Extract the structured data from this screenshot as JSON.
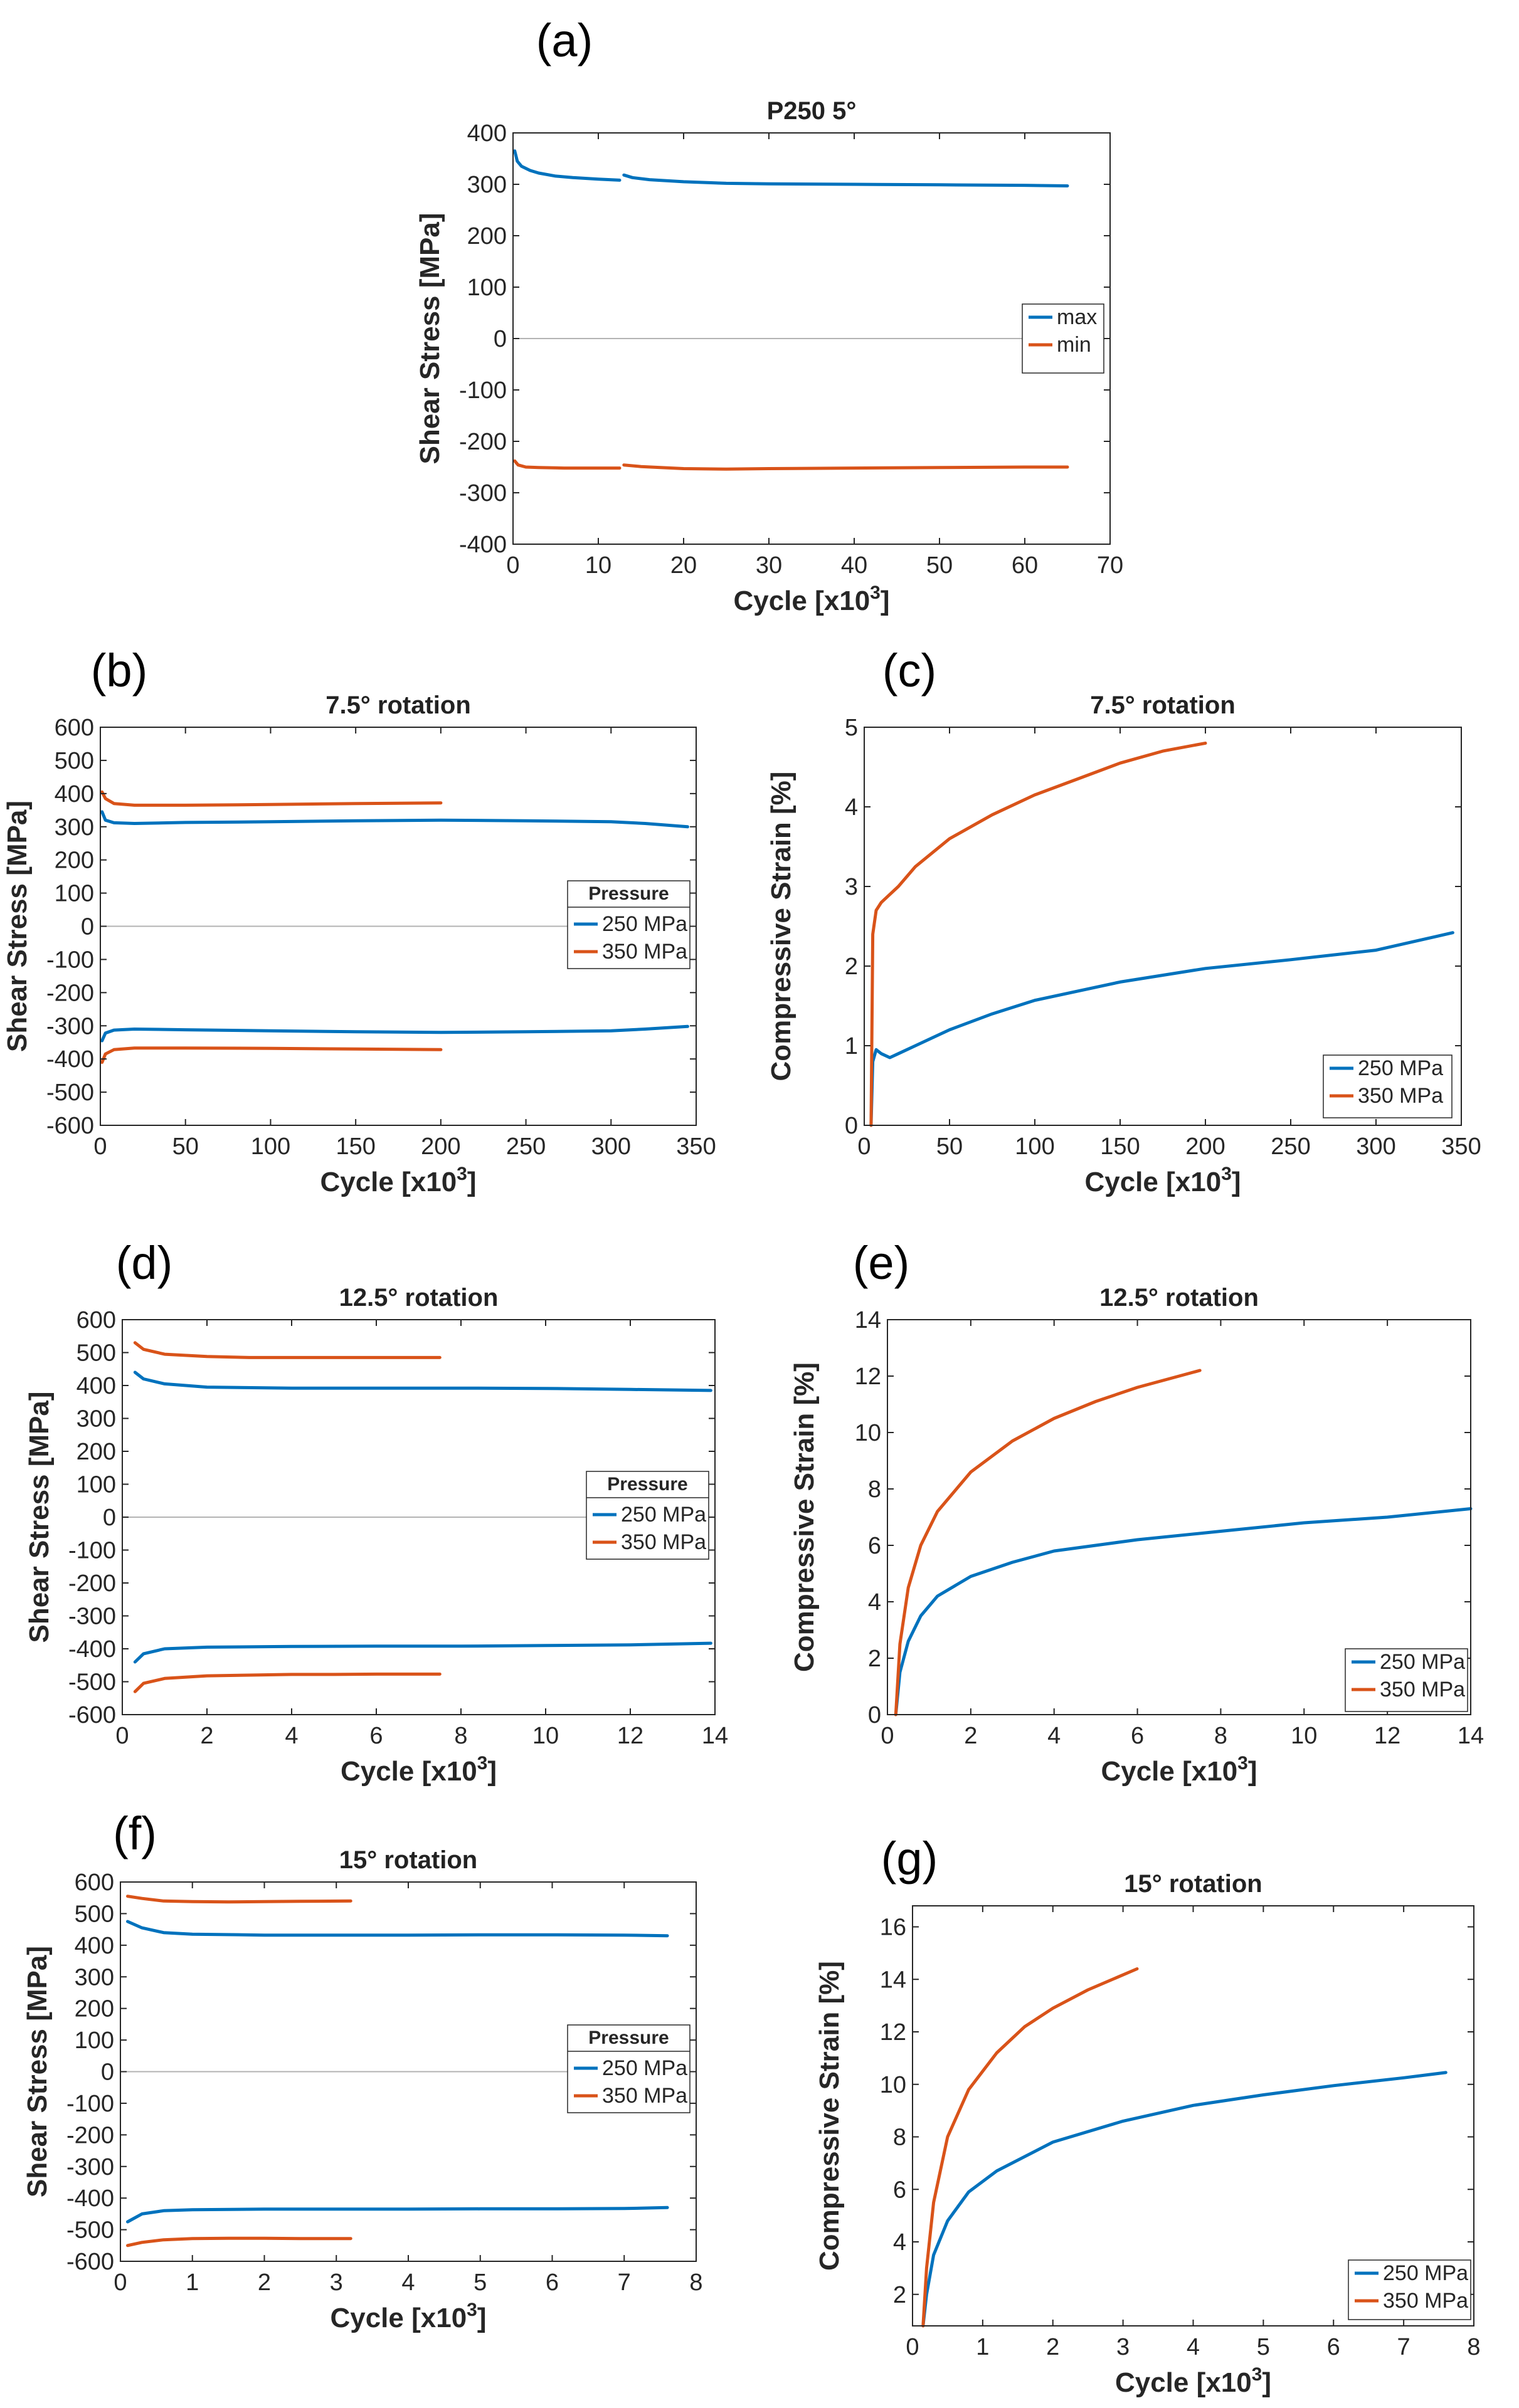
{
  "colors": {
    "blue": "#0072BD",
    "orange": "#D95319",
    "axis": "#262626",
    "zero": "#b3b3b3"
  },
  "chart_data": [
    {
      "id": "a",
      "panel": "(a)",
      "type": "line",
      "title": "P250 5°",
      "xlabel": "Cycle [x10",
      "xsup": "3",
      "xclose": "]",
      "ylabel": "Shear Stress [MPa]",
      "xlim": [
        0,
        70
      ],
      "ylim": [
        -400,
        400
      ],
      "xticks": [
        0,
        10,
        20,
        30,
        40,
        50,
        60,
        70
      ],
      "yticks": [
        -400,
        -300,
        -200,
        -100,
        0,
        100,
        200,
        300,
        400
      ],
      "zero_line": true,
      "legend": {
        "title": "",
        "entries": [
          "max",
          "min"
        ]
      },
      "series": [
        {
          "name": "max",
          "color": "blue",
          "segments": [
            {
              "x": [
                0.2,
                0.5,
                1,
                2,
                3,
                5,
                7,
                10,
                12.5
              ],
              "y": [
                365,
                345,
                335,
                327,
                322,
                316,
                313,
                310,
                308
              ]
            },
            {
              "x": [
                13,
                14,
                16,
                20,
                25,
                30,
                40,
                50,
                60,
                65
              ],
              "y": [
                318,
                313,
                309,
                305,
                302,
                301,
                300,
                299,
                298,
                297
              ]
            }
          ]
        },
        {
          "name": "min",
          "color": "orange",
          "segments": [
            {
              "x": [
                0.2,
                0.6,
                1.5,
                3,
                6,
                10,
                12.5
              ],
              "y": [
                -238,
                -246,
                -250,
                -251,
                -252,
                -252,
                -252
              ]
            },
            {
              "x": [
                13,
                15,
                20,
                25,
                30,
                40,
                50,
                60,
                65
              ],
              "y": [
                -246,
                -249,
                -253,
                -254,
                -253,
                -252,
                -251,
                -250,
                -250
              ]
            }
          ]
        }
      ]
    },
    {
      "id": "b",
      "panel": "(b)",
      "type": "line",
      "title": "7.5° rotation",
      "xlabel": "Cycle [x10",
      "xsup": "3",
      "xclose": "]",
      "ylabel": "Shear Stress [MPa]",
      "xlim": [
        0,
        350
      ],
      "ylim": [
        -600,
        600
      ],
      "xticks": [
        0,
        50,
        100,
        150,
        200,
        250,
        300,
        350
      ],
      "yticks": [
        -600,
        -500,
        -400,
        -300,
        -200,
        -100,
        0,
        100,
        200,
        300,
        400,
        500,
        600
      ],
      "zero_line": true,
      "legend": {
        "title": "Pressure",
        "entries": [
          "250 MPa",
          "350 MPa"
        ]
      },
      "series": [
        {
          "name": "250 MPa",
          "color": "blue",
          "segments": [
            {
              "x": [
                1,
                3,
                8,
                20,
                50,
                100,
                150,
                200,
                250,
                300,
                320,
                345
              ],
              "y": [
                345,
                320,
                312,
                310,
                313,
                315,
                318,
                320,
                318,
                315,
                310,
                300
              ]
            },
            {
              "x": [
                1,
                3,
                8,
                20,
                50,
                100,
                150,
                200,
                250,
                300,
                320,
                345
              ],
              "y": [
                -345,
                -322,
                -313,
                -310,
                -312,
                -315,
                -318,
                -320,
                -318,
                -315,
                -310,
                -302
              ]
            }
          ]
        },
        {
          "name": "350 MPa",
          "color": "orange",
          "segments": [
            {
              "x": [
                1,
                3,
                8,
                20,
                50,
                100,
                150,
                200
              ],
              "y": [
                405,
                385,
                370,
                365,
                365,
                367,
                370,
                372
              ]
            },
            {
              "x": [
                1,
                3,
                8,
                20,
                50,
                100,
                150,
                200
              ],
              "y": [
                -410,
                -385,
                -372,
                -367,
                -367,
                -368,
                -370,
                -372
              ]
            }
          ]
        }
      ]
    },
    {
      "id": "c",
      "panel": "(c)",
      "type": "line",
      "title": "7.5° rotation",
      "xlabel": "Cycle [x10",
      "xsup": "3",
      "xclose": "]",
      "ylabel": "Compressive Strain [%]",
      "xlim": [
        0,
        350
      ],
      "ylim": [
        0,
        5
      ],
      "xticks": [
        0,
        50,
        100,
        150,
        200,
        250,
        300,
        350
      ],
      "yticks": [
        0,
        1,
        2,
        3,
        4,
        5
      ],
      "zero_line": false,
      "legend": {
        "title": "",
        "entries": [
          "250 MPa",
          "350 MPa"
        ]
      },
      "series": [
        {
          "name": "250 MPa",
          "color": "blue",
          "segments": [
            {
              "x": [
                4,
                5,
                7,
                10,
                15,
                20,
                30,
                50,
                75,
                100,
                150,
                200,
                250,
                300,
                345
              ],
              "y": [
                0,
                0.8,
                0.95,
                0.9,
                0.85,
                0.9,
                1.0,
                1.2,
                1.4,
                1.57,
                1.8,
                1.97,
                2.08,
                2.2,
                2.42
              ]
            }
          ]
        },
        {
          "name": "350 MPa",
          "color": "orange",
          "segments": [
            {
              "x": [
                4,
                5,
                7,
                10,
                15,
                20,
                30,
                50,
                75,
                100,
                125,
                150,
                175,
                200
              ],
              "y": [
                0,
                2.4,
                2.7,
                2.8,
                2.9,
                3.0,
                3.25,
                3.6,
                3.9,
                4.15,
                4.35,
                4.55,
                4.7,
                4.8
              ]
            }
          ]
        }
      ]
    },
    {
      "id": "d",
      "panel": "(d)",
      "type": "line",
      "title": "12.5° rotation",
      "xlabel": "Cycle [x10",
      "xsup": "3",
      "xclose": "]",
      "ylabel": "Shear Stress [MPa]",
      "xlim": [
        0,
        14
      ],
      "ylim": [
        -600,
        600
      ],
      "xticks": [
        0,
        2,
        4,
        6,
        8,
        10,
        12,
        14
      ],
      "yticks": [
        -600,
        -500,
        -400,
        -300,
        -200,
        -100,
        0,
        100,
        200,
        300,
        400,
        500,
        600
      ],
      "zero_line": true,
      "legend": {
        "title": "Pressure",
        "entries": [
          "250 MPa",
          "350 MPa"
        ]
      },
      "series": [
        {
          "name": "250 MPa",
          "color": "blue",
          "segments": [
            {
              "x": [
                0.3,
                0.5,
                1,
                2,
                4,
                6,
                8,
                10,
                12,
                13.9
              ],
              "y": [
                440,
                420,
                405,
                395,
                392,
                392,
                392,
                391,
                388,
                385
              ]
            },
            {
              "x": [
                0.3,
                0.5,
                1,
                2,
                4,
                6,
                8,
                10,
                12,
                13.9
              ],
              "y": [
                -440,
                -415,
                -400,
                -395,
                -393,
                -392,
                -392,
                -390,
                -388,
                -383
              ]
            }
          ]
        },
        {
          "name": "350 MPa",
          "color": "orange",
          "segments": [
            {
              "x": [
                0.3,
                0.5,
                1,
                2,
                3,
                4,
                5,
                6,
                7.5
              ],
              "y": [
                530,
                510,
                495,
                488,
                485,
                485,
                485,
                485,
                485
              ]
            },
            {
              "x": [
                0.3,
                0.5,
                1,
                2,
                3,
                4,
                5,
                6,
                7.5
              ],
              "y": [
                -530,
                -505,
                -490,
                -482,
                -480,
                -478,
                -478,
                -477,
                -477
              ]
            }
          ]
        }
      ]
    },
    {
      "id": "e",
      "panel": "(e)",
      "type": "line",
      "title": "12.5° rotation",
      "xlabel": "Cycle [x10",
      "xsup": "3",
      "xclose": "]",
      "ylabel": "Compressive Strain [%]",
      "xlim": [
        0,
        14
      ],
      "ylim": [
        0,
        14
      ],
      "xticks": [
        0,
        2,
        4,
        6,
        8,
        10,
        12,
        14
      ],
      "yticks": [
        0,
        2,
        4,
        6,
        8,
        10,
        12,
        14
      ],
      "zero_line": false,
      "legend": {
        "title": "",
        "entries": [
          "250 MPa",
          "350 MPa"
        ]
      },
      "series": [
        {
          "name": "250 MPa",
          "color": "blue",
          "segments": [
            {
              "x": [
                0.2,
                0.3,
                0.5,
                0.8,
                1.2,
                2,
                3,
                4,
                6,
                8,
                10,
                12,
                14
              ],
              "y": [
                0,
                1.5,
                2.6,
                3.5,
                4.2,
                4.9,
                5.4,
                5.8,
                6.2,
                6.5,
                6.8,
                7.0,
                7.3
              ]
            }
          ]
        },
        {
          "name": "350 MPa",
          "color": "orange",
          "segments": [
            {
              "x": [
                0.2,
                0.3,
                0.5,
                0.8,
                1.2,
                2,
                3,
                4,
                5,
                6,
                7,
                7.5
              ],
              "y": [
                0,
                2.5,
                4.5,
                6.0,
                7.2,
                8.6,
                9.7,
                10.5,
                11.1,
                11.6,
                12.0,
                12.2
              ]
            }
          ]
        }
      ]
    },
    {
      "id": "f",
      "panel": "(f)",
      "type": "line",
      "title": "15° rotation",
      "xlabel": "Cycle [x10",
      "xsup": "3",
      "xclose": "]",
      "ylabel": "Shear Stress [MPa]",
      "xlim": [
        0,
        8
      ],
      "ylim": [
        -600,
        600
      ],
      "xticks": [
        0,
        1,
        2,
        3,
        4,
        5,
        6,
        7,
        8
      ],
      "yticks": [
        -600,
        -500,
        -400,
        -300,
        -200,
        -100,
        0,
        100,
        200,
        300,
        400,
        500,
        600
      ],
      "zero_line": true,
      "legend": {
        "title": "Pressure",
        "entries": [
          "250 MPa",
          "350 MPa"
        ]
      },
      "series": [
        {
          "name": "250 MPa",
          "color": "blue",
          "segments": [
            {
              "x": [
                0.1,
                0.3,
                0.6,
                1,
                2,
                3,
                4,
                5,
                6,
                7,
                7.6
              ],
              "y": [
                475,
                455,
                440,
                435,
                432,
                432,
                432,
                433,
                433,
                432,
                430
              ]
            },
            {
              "x": [
                0.1,
                0.3,
                0.6,
                1,
                2,
                3,
                4,
                5,
                6,
                7,
                7.6
              ],
              "y": [
                -475,
                -450,
                -440,
                -437,
                -435,
                -435,
                -435,
                -434,
                -434,
                -433,
                -430
              ]
            }
          ]
        },
        {
          "name": "350 MPa",
          "color": "orange",
          "segments": [
            {
              "x": [
                0.1,
                0.3,
                0.6,
                1,
                1.5,
                2,
                2.5,
                3.2
              ],
              "y": [
                555,
                548,
                540,
                538,
                537,
                538,
                539,
                540
              ]
            },
            {
              "x": [
                0.1,
                0.3,
                0.6,
                1,
                1.5,
                2,
                2.5,
                3.2
              ],
              "y": [
                -550,
                -540,
                -532,
                -528,
                -527,
                -527,
                -528,
                -528
              ]
            }
          ]
        }
      ]
    },
    {
      "id": "g",
      "panel": "(g)",
      "type": "line",
      "title": "15° rotation",
      "xlabel": "Cycle [x10",
      "xsup": "3",
      "xclose": "]",
      "ylabel": "Compressive Strain [%]",
      "xlim": [
        0,
        8
      ],
      "ylim": [
        0.8,
        16.8
      ],
      "xticks": [
        0,
        1,
        2,
        3,
        4,
        5,
        6,
        7,
        8
      ],
      "yticks": [
        2,
        4,
        6,
        8,
        10,
        12,
        14,
        16
      ],
      "zero_line": false,
      "legend": {
        "title": "",
        "entries": [
          "250 MPa",
          "350 MPa"
        ]
      },
      "series": [
        {
          "name": "250 MPa",
          "color": "blue",
          "segments": [
            {
              "x": [
                0.15,
                0.2,
                0.3,
                0.5,
                0.8,
                1.2,
                2,
                3,
                4,
                5,
                6,
                7,
                7.6
              ],
              "y": [
                0.8,
                2.0,
                3.5,
                4.8,
                5.9,
                6.7,
                7.8,
                8.6,
                9.2,
                9.6,
                9.95,
                10.25,
                10.45
              ]
            }
          ]
        },
        {
          "name": "350 MPa",
          "color": "orange",
          "segments": [
            {
              "x": [
                0.15,
                0.2,
                0.3,
                0.5,
                0.8,
                1.2,
                1.6,
                2,
                2.5,
                3.2
              ],
              "y": [
                0.8,
                3.0,
                5.5,
                8.0,
                9.8,
                11.2,
                12.2,
                12.9,
                13.6,
                14.4
              ]
            }
          ]
        }
      ]
    }
  ]
}
